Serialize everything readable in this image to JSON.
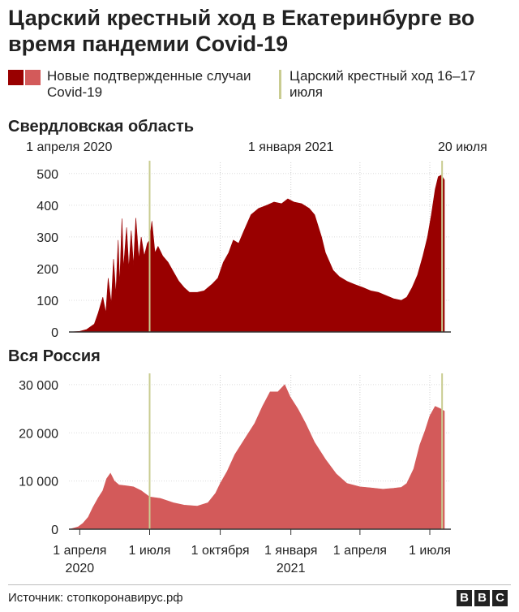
{
  "title": "Царский крестный ход в Екатеринбурге во время пандемии Covid-19",
  "legend": {
    "cases_label": "Новые подтвержденные случаи Covid-19",
    "cases_colors": [
      "#990000",
      "#d35a5a"
    ],
    "event_label": "Царский крестный ход 16–17 июля",
    "event_color": "#c9cc91"
  },
  "source": "Источник: стопкоронавирус.рф",
  "logo": "BBC",
  "chart_data": [
    {
      "type": "area",
      "title": "Свердловская область",
      "color": "#990000",
      "top_date_labels": [
        {
          "date": "2020-04-01",
          "label": "1 апреля 2020"
        },
        {
          "date": "2021-01-01",
          "label": "1 января 2021"
        },
        {
          "date": "2021-07-20",
          "label": "20 июля"
        }
      ],
      "x_range": [
        "2020-03-20",
        "2021-07-20"
      ],
      "ylim": [
        0,
        520
      ],
      "yticks": [
        0,
        100,
        200,
        300,
        400,
        500
      ],
      "ytick_labels": [
        "0",
        "100",
        "200",
        "300",
        "400",
        "500"
      ],
      "event_lines": [
        "2020-07-01",
        "2021-07-17"
      ],
      "gridlines_x": [
        "2020-07-01",
        "2020-10-01",
        "2021-01-01",
        "2021-04-01",
        "2021-07-01"
      ],
      "points": [
        [
          "2020-03-20",
          0
        ],
        [
          "2020-04-01",
          2
        ],
        [
          "2020-04-10",
          8
        ],
        [
          "2020-04-20",
          25
        ],
        [
          "2020-04-25",
          60
        ],
        [
          "2020-05-01",
          110
        ],
        [
          "2020-05-05",
          60
        ],
        [
          "2020-05-08",
          170
        ],
        [
          "2020-05-12",
          90
        ],
        [
          "2020-05-15",
          230
        ],
        [
          "2020-05-18",
          120
        ],
        [
          "2020-05-21",
          290
        ],
        [
          "2020-05-23",
          150
        ],
        [
          "2020-05-26",
          358
        ],
        [
          "2020-05-28",
          200
        ],
        [
          "2020-06-01",
          330
        ],
        [
          "2020-06-04",
          200
        ],
        [
          "2020-06-07",
          320
        ],
        [
          "2020-06-10",
          210
        ],
        [
          "2020-06-13",
          360
        ],
        [
          "2020-06-17",
          230
        ],
        [
          "2020-06-20",
          300
        ],
        [
          "2020-06-24",
          240
        ],
        [
          "2020-06-28",
          280
        ],
        [
          "2020-07-01",
          290
        ],
        [
          "2020-07-04",
          350
        ],
        [
          "2020-07-08",
          250
        ],
        [
          "2020-07-12",
          270
        ],
        [
          "2020-07-18",
          240
        ],
        [
          "2020-07-25",
          220
        ],
        [
          "2020-08-01",
          190
        ],
        [
          "2020-08-08",
          160
        ],
        [
          "2020-08-15",
          140
        ],
        [
          "2020-08-22",
          125
        ],
        [
          "2020-09-01",
          125
        ],
        [
          "2020-09-10",
          130
        ],
        [
          "2020-09-20",
          150
        ],
        [
          "2020-09-28",
          170
        ],
        [
          "2020-10-05",
          220
        ],
        [
          "2020-10-12",
          250
        ],
        [
          "2020-10-18",
          290
        ],
        [
          "2020-10-25",
          280
        ],
        [
          "2020-11-01",
          320
        ],
        [
          "2020-11-10",
          370
        ],
        [
          "2020-11-20",
          390
        ],
        [
          "2020-12-01",
          400
        ],
        [
          "2020-12-10",
          410
        ],
        [
          "2020-12-20",
          405
        ],
        [
          "2020-12-28",
          420
        ],
        [
          "2021-01-05",
          410
        ],
        [
          "2021-01-15",
          405
        ],
        [
          "2021-01-25",
          390
        ],
        [
          "2021-02-01",
          370
        ],
        [
          "2021-02-10",
          300
        ],
        [
          "2021-02-15",
          250
        ],
        [
          "2021-02-25",
          195
        ],
        [
          "2021-03-05",
          175
        ],
        [
          "2021-03-15",
          160
        ],
        [
          "2021-03-25",
          150
        ],
        [
          "2021-04-05",
          140
        ],
        [
          "2021-04-15",
          130
        ],
        [
          "2021-04-25",
          125
        ],
        [
          "2021-05-05",
          115
        ],
        [
          "2021-05-15",
          105
        ],
        [
          "2021-05-25",
          100
        ],
        [
          "2021-06-01",
          110
        ],
        [
          "2021-06-08",
          140
        ],
        [
          "2021-06-15",
          180
        ],
        [
          "2021-06-22",
          240
        ],
        [
          "2021-06-28",
          300
        ],
        [
          "2021-07-03",
          370
        ],
        [
          "2021-07-08",
          450
        ],
        [
          "2021-07-12",
          490
        ],
        [
          "2021-07-16",
          495
        ],
        [
          "2021-07-20",
          480
        ]
      ]
    },
    {
      "type": "area",
      "title": "Вся Россия",
      "color": "#d35a5a",
      "x_range": [
        "2020-03-20",
        "2021-07-20"
      ],
      "ylim": [
        0,
        31000
      ],
      "yticks": [
        0,
        10000,
        20000,
        30000
      ],
      "ytick_labels": [
        "0",
        "10 000",
        "20 000",
        "30 000"
      ],
      "event_lines": [
        "2020-07-01",
        "2021-07-17"
      ],
      "gridlines_x": [
        "2020-07-01",
        "2020-10-01",
        "2021-01-01",
        "2021-04-01",
        "2021-07-01"
      ],
      "bottom_date_labels": [
        {
          "date": "2020-04-01",
          "label": "1 апреля",
          "label2": "2020"
        },
        {
          "date": "2020-07-01",
          "label": "1 июля",
          "label2": ""
        },
        {
          "date": "2020-10-01",
          "label": "1 октября",
          "label2": ""
        },
        {
          "date": "2021-01-01",
          "label": "1 января",
          "label2": "2021"
        },
        {
          "date": "2021-04-01",
          "label": "1 апреля",
          "label2": ""
        },
        {
          "date": "2021-07-01",
          "label": "1 июля",
          "label2": ""
        }
      ],
      "points": [
        [
          "2020-03-20",
          50
        ],
        [
          "2020-03-30",
          500
        ],
        [
          "2020-04-05",
          1200
        ],
        [
          "2020-04-12",
          2500
        ],
        [
          "2020-04-18",
          4500
        ],
        [
          "2020-04-25",
          6500
        ],
        [
          "2020-05-01",
          8000
        ],
        [
          "2020-05-06",
          10500
        ],
        [
          "2020-05-11",
          11600
        ],
        [
          "2020-05-16",
          10000
        ],
        [
          "2020-05-22",
          9200
        ],
        [
          "2020-06-01",
          9000
        ],
        [
          "2020-06-10",
          8800
        ],
        [
          "2020-06-20",
          8000
        ],
        [
          "2020-07-01",
          6700
        ],
        [
          "2020-07-15",
          6400
        ],
        [
          "2020-08-01",
          5500
        ],
        [
          "2020-08-15",
          5000
        ],
        [
          "2020-09-01",
          4800
        ],
        [
          "2020-09-15",
          5500
        ],
        [
          "2020-09-25",
          7500
        ],
        [
          "2020-10-01",
          9500
        ],
        [
          "2020-10-10",
          12000
        ],
        [
          "2020-10-20",
          15500
        ],
        [
          "2020-11-01",
          18500
        ],
        [
          "2020-11-15",
          22000
        ],
        [
          "2020-11-25",
          25500
        ],
        [
          "2020-12-05",
          28500
        ],
        [
          "2020-12-15",
          28500
        ],
        [
          "2020-12-24",
          30000
        ],
        [
          "2020-12-31",
          27500
        ],
        [
          "2021-01-10",
          25000
        ],
        [
          "2021-01-20",
          22000
        ],
        [
          "2021-02-01",
          18000
        ],
        [
          "2021-02-15",
          14500
        ],
        [
          "2021-03-01",
          11500
        ],
        [
          "2021-03-15",
          9500
        ],
        [
          "2021-04-01",
          8800
        ],
        [
          "2021-04-15",
          8600
        ],
        [
          "2021-05-01",
          8300
        ],
        [
          "2021-05-15",
          8500
        ],
        [
          "2021-05-25",
          8700
        ],
        [
          "2021-06-01",
          9500
        ],
        [
          "2021-06-10",
          12500
        ],
        [
          "2021-06-18",
          17500
        ],
        [
          "2021-06-25",
          20500
        ],
        [
          "2021-07-01",
          23500
        ],
        [
          "2021-07-08",
          25500
        ],
        [
          "2021-07-15",
          25000
        ],
        [
          "2021-07-20",
          24500
        ]
      ]
    }
  ]
}
